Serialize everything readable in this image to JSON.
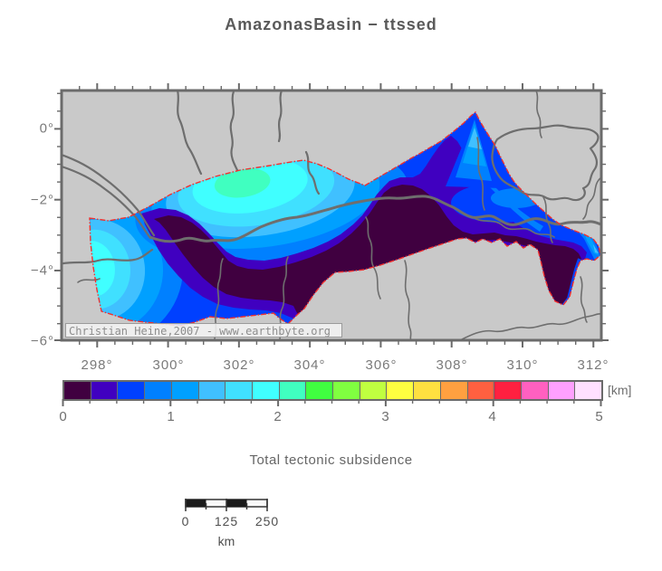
{
  "title": "AmazonasBasin − ttssed",
  "map": {
    "x_axis": {
      "labels": [
        "298°",
        "300°",
        "302°",
        "304°",
        "306°",
        "308°",
        "310°",
        "312°"
      ]
    },
    "y_axis": {
      "labels": [
        "0°",
        "−2°",
        "−4°",
        "−6°"
      ]
    },
    "watermark": "Christian Heine,2007 - www.earthbyte.org"
  },
  "colorbar": {
    "unit": "[km]",
    "tick_labels": [
      "0",
      "1",
      "2",
      "3",
      "4",
      "5"
    ],
    "range_km": [
      0,
      5
    ],
    "step_km": 0.25,
    "colors": [
      "#400040",
      "#4000C0",
      "#0040FF",
      "#0080FF",
      "#00A0FF",
      "#40C0FF",
      "#40E0FF",
      "#40FFFF",
      "#40FFC0",
      "#40FF40",
      "#80FF40",
      "#C0FF40",
      "#FFFF40",
      "#FFE040",
      "#FFA040",
      "#FF6040",
      "#FF2040",
      "#FF60C0",
      "#FFA0FF",
      "#FFE0FF"
    ]
  },
  "caption": "Total tectonic subsidence",
  "scalebar": {
    "tick_labels": [
      "0",
      "125",
      "250"
    ],
    "unit": "km"
  }
}
